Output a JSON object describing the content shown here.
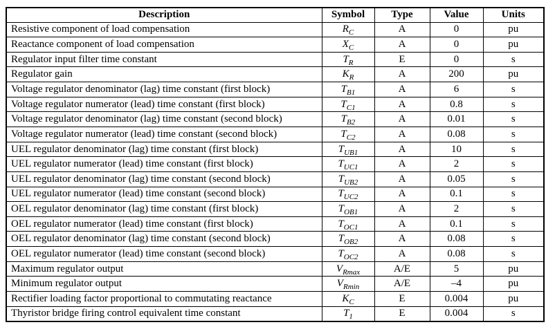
{
  "table": {
    "headers": {
      "description": "Description",
      "symbol": "Symbol",
      "type": "Type",
      "value": "Value",
      "units": "Units"
    },
    "rows": [
      {
        "description": "Resistive component of load compensation",
        "symbol_base": "R",
        "symbol_sub": "C",
        "type": "A",
        "value": "0",
        "units": "pu"
      },
      {
        "description": "Reactance component of load compensation",
        "symbol_base": "X",
        "symbol_sub": "C",
        "type": "A",
        "value": "0",
        "units": "pu"
      },
      {
        "description": "Regulator input filter time constant",
        "symbol_base": "T",
        "symbol_sub": "R",
        "type": "E",
        "value": "0",
        "units": "s"
      },
      {
        "description": "Regulator gain",
        "symbol_base": "K",
        "symbol_sub": "R",
        "type": "A",
        "value": "200",
        "units": "pu"
      },
      {
        "description": "Voltage regulator denominator (lag) time constant (first block)",
        "symbol_base": "T",
        "symbol_sub": "B1",
        "type": "A",
        "value": "6",
        "units": "s"
      },
      {
        "description": "Voltage regulator numerator (lead) time constant (first block)",
        "symbol_base": "T",
        "symbol_sub": "C1",
        "type": "A",
        "value": "0.8",
        "units": "s"
      },
      {
        "description": "Voltage regulator denominator (lag) time constant (second block)",
        "symbol_base": "T",
        "symbol_sub": "B2",
        "type": "A",
        "value": "0.01",
        "units": "s"
      },
      {
        "description": "Voltage regulator numerator (lead) time constant (second block)",
        "symbol_base": "T",
        "symbol_sub": "C2",
        "type": "A",
        "value": "0.08",
        "units": "s"
      },
      {
        "description": "UEL regulator denominator (lag) time constant (first block)",
        "symbol_base": "T",
        "symbol_sub": "UB1",
        "type": "A",
        "value": "10",
        "units": "s"
      },
      {
        "description": "UEL regulator numerator (lead) time constant (first block)",
        "symbol_base": "T",
        "symbol_sub": "UC1",
        "type": "A",
        "value": "2",
        "units": "s"
      },
      {
        "description": "UEL regulator denominator (lag) time constant (second block)",
        "symbol_base": "T",
        "symbol_sub": "UB2",
        "type": "A",
        "value": "0.05",
        "units": "s"
      },
      {
        "description": "UEL regulator numerator (lead) time constant (second block)",
        "symbol_base": "T",
        "symbol_sub": "UC2",
        "type": "A",
        "value": "0.1",
        "units": "s"
      },
      {
        "description": "OEL regulator denominator (lag) time constant (first block)",
        "symbol_base": "T",
        "symbol_sub": "OB1",
        "type": "A",
        "value": "2",
        "units": "s"
      },
      {
        "description": "OEL regulator numerator (lead) time constant (first block)",
        "symbol_base": "T",
        "symbol_sub": "OC1",
        "type": "A",
        "value": "0.1",
        "units": "s"
      },
      {
        "description": "OEL regulator denominator (lag) time constant (second block)",
        "symbol_base": "T",
        "symbol_sub": "OB2",
        "type": "A",
        "value": "0.08",
        "units": "s"
      },
      {
        "description": "OEL regulator numerator (lead) time constant (second block)",
        "symbol_base": "T",
        "symbol_sub": "OC2",
        "type": "A",
        "value": "0.08",
        "units": "s"
      },
      {
        "description": "Maximum regulator output",
        "symbol_base": "V",
        "symbol_sub": "Rmax",
        "type": "A/E",
        "value": "5",
        "units": "pu"
      },
      {
        "description": "Minimum regulator output",
        "symbol_base": "V",
        "symbol_sub": "Rmin",
        "type": "A/E",
        "value": "–4",
        "units": "pu"
      },
      {
        "description": "Rectifier loading factor proportional to commutating reactance",
        "symbol_base": "K",
        "symbol_sub": "C",
        "type": "E",
        "value": "0.004",
        "units": "pu"
      },
      {
        "description": "Thyristor bridge firing control equivalent time constant",
        "symbol_base": "T",
        "symbol_sub": "1",
        "type": "E",
        "value": "0.004",
        "units": "s"
      }
    ]
  },
  "colors": {
    "border": "#000000",
    "text": "#000000",
    "background": "#ffffff"
  }
}
